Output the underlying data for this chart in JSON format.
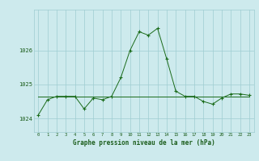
{
  "x": [
    0,
    1,
    2,
    3,
    4,
    5,
    6,
    7,
    8,
    9,
    10,
    11,
    12,
    13,
    14,
    15,
    16,
    17,
    18,
    19,
    20,
    21,
    22,
    23
  ],
  "y": [
    1024.1,
    1024.55,
    1024.65,
    1024.65,
    1024.65,
    1024.28,
    1024.6,
    1024.55,
    1024.65,
    1025.2,
    1026.0,
    1026.55,
    1026.45,
    1026.65,
    1025.75,
    1024.8,
    1024.65,
    1024.65,
    1024.5,
    1024.42,
    1024.6,
    1024.72,
    1024.72,
    1024.68
  ],
  "y_flat": [
    1024.65,
    1024.65,
    1024.65,
    1024.65,
    1024.65,
    1024.65,
    1024.65,
    1024.65,
    1024.65,
    1024.65,
    1024.65,
    1024.65,
    1024.65,
    1024.65,
    1024.65,
    1024.65,
    1024.65,
    1024.65,
    1024.65,
    1024.65,
    1024.65,
    1024.65,
    1024.65,
    1024.65
  ],
  "line_color": "#1a6b1a",
  "bg_color": "#cdeaed",
  "grid_color": "#9fcdd1",
  "text_color": "#1a5c1a",
  "xlabel": "Graphe pression niveau de la mer (hPa)",
  "yticks": [
    1024,
    1025,
    1026
  ],
  "ylim": [
    1023.6,
    1027.2
  ],
  "xlim": [
    -0.5,
    23.5
  ]
}
